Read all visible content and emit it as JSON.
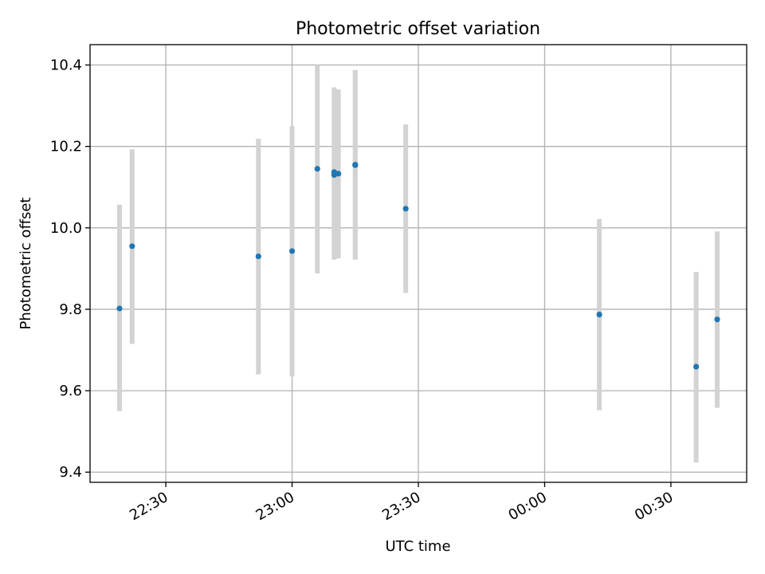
{
  "chart_data": {
    "type": "scatter",
    "title": "Photometric offset variation",
    "xlabel": "UTC time",
    "ylabel": "Photometric offset",
    "grid": true,
    "legend": "none",
    "xlim": [
      "22:12",
      "00:48"
    ],
    "ylim": [
      9.375,
      10.45
    ],
    "xticks": [
      "22:30",
      "23:00",
      "23:30",
      "00:00",
      "00:30"
    ],
    "yticks": [
      "9.4",
      "9.6",
      "9.8",
      "10.0",
      "10.2",
      "10.4"
    ],
    "series": [
      {
        "marker_color": "#1f77b4",
        "errorbar_color": "#d3d3d3",
        "points": [
          {
            "x": "22:19",
            "y": 9.802,
            "low": 9.55,
            "high": 10.057
          },
          {
            "x": "22:22",
            "y": 9.955,
            "low": 9.715,
            "high": 10.193
          },
          {
            "x": "22:52",
            "y": 9.93,
            "low": 9.64,
            "high": 10.219
          },
          {
            "x": "23:00",
            "y": 9.943,
            "low": 9.635,
            "high": 10.25
          },
          {
            "x": "23:06",
            "y": 10.145,
            "low": 9.888,
            "high": 10.4
          },
          {
            "x": "23:10",
            "y": 10.13,
            "low": 9.922,
            "high": 10.338
          },
          {
            "x": "23:10",
            "y": 10.137,
            "low": 9.928,
            "high": 10.345
          },
          {
            "x": "23:11",
            "y": 10.133,
            "low": 9.925,
            "high": 10.34
          },
          {
            "x": "23:15",
            "y": 10.155,
            "low": 9.922,
            "high": 10.388
          },
          {
            "x": "23:15",
            "y": 10.154,
            "low": 9.922,
            "high": 10.386
          },
          {
            "x": "23:27",
            "y": 10.047,
            "low": 9.84,
            "high": 10.254
          },
          {
            "x": "00:13",
            "y": 9.787,
            "low": 9.552,
            "high": 10.022
          },
          {
            "x": "00:36",
            "y": 9.659,
            "low": 9.424,
            "high": 9.892
          },
          {
            "x": "00:41",
            "y": 9.775,
            "low": 9.558,
            "high": 9.991
          }
        ]
      }
    ]
  }
}
